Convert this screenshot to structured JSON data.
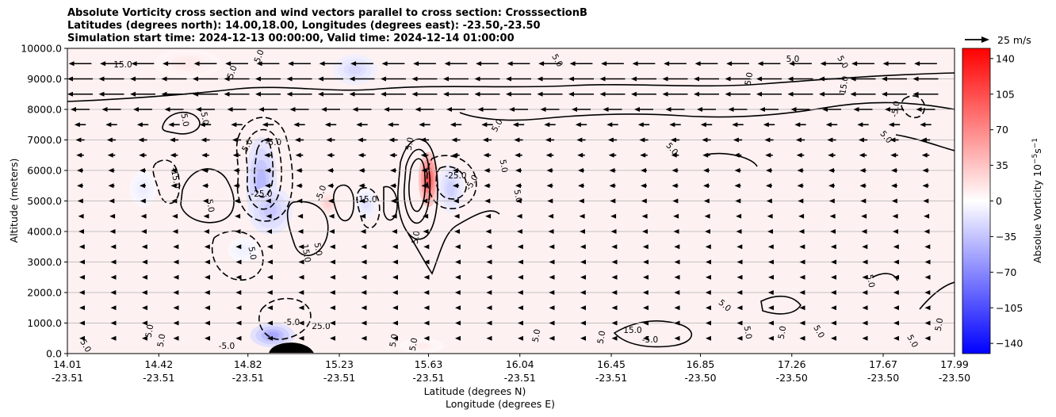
{
  "chart_data": {
    "type": "heatmap",
    "title_lines": [
      "Absolute Vorticity cross section and wind vectors parallel to cross section: CrosssectionB",
      "Latitudes (degrees north): 14.00,18.00, Longitudes (degrees east): -23.50,-23.50",
      "Simulation start time: 2024-12-13 00:00:00, Valid time: 2024-12-14 01:00:00"
    ],
    "ylabel": "Altitude (meters)",
    "xlabel_lat": "Latitude (degrees N)",
    "xlabel_lon": "Longitude (degrees E)",
    "ylim": [
      0,
      10000
    ],
    "xlim": [
      14.01,
      17.99
    ],
    "y_ticks": [
      {
        "value": 0,
        "label": "0.0"
      },
      {
        "value": 1000,
        "label": "1000.0"
      },
      {
        "value": 2000,
        "label": "2000.0"
      },
      {
        "value": 3000,
        "label": "3000.0"
      },
      {
        "value": 4000,
        "label": "4000.0"
      },
      {
        "value": 5000,
        "label": "5000.0"
      },
      {
        "value": 6000,
        "label": "6000.0"
      },
      {
        "value": 7000,
        "label": "7000.0"
      },
      {
        "value": 8000,
        "label": "8000.0"
      },
      {
        "value": 9000,
        "label": "9000.0"
      },
      {
        "value": 10000,
        "label": "10000.0"
      }
    ],
    "x_ticks": [
      {
        "value": 14.01,
        "lat": "14.01",
        "lon": "-23.51"
      },
      {
        "value": 14.42,
        "lat": "14.42",
        "lon": "-23.51"
      },
      {
        "value": 14.82,
        "lat": "14.82",
        "lon": "-23.51"
      },
      {
        "value": 15.23,
        "lat": "15.23",
        "lon": "-23.51"
      },
      {
        "value": 15.63,
        "lat": "15.63",
        "lon": "-23.51"
      },
      {
        "value": 16.04,
        "lat": "16.04",
        "lon": "-23.51"
      },
      {
        "value": 16.45,
        "lat": "16.45",
        "lon": "-23.51"
      },
      {
        "value": 16.85,
        "lat": "16.85",
        "lon": "-23.50"
      },
      {
        "value": 17.26,
        "lat": "17.26",
        "lon": "-23.50"
      },
      {
        "value": 17.67,
        "lat": "17.67",
        "lon": "-23.50"
      },
      {
        "value": 17.99,
        "lat": "17.99",
        "lon": "-23.50"
      }
    ],
    "grid": "horizontal",
    "colorbar": {
      "label_main": "Absolue Vorticity 10",
      "label_sup1": "−5",
      "label_mid": "s",
      "label_sup2": "−1",
      "range": [
        -150,
        150
      ],
      "colormap": "bwr",
      "ticks": [
        {
          "value": 140,
          "label": "140"
        },
        {
          "value": 105,
          "label": "105"
        },
        {
          "value": 70,
          "label": "70"
        },
        {
          "value": 35,
          "label": "35"
        },
        {
          "value": 0,
          "label": "0"
        },
        {
          "value": -35,
          "label": "−35"
        },
        {
          "value": -70,
          "label": "−70"
        },
        {
          "value": -105,
          "label": "−105"
        },
        {
          "value": -140,
          "label": "−140"
        }
      ]
    },
    "quiver_key": {
      "label": "25 m/s",
      "value": 25
    },
    "contour_labels": [
      "5.0",
      "15.0",
      "-5.0",
      "-15.0",
      "-25.0",
      "25.0"
    ],
    "wind_rows": [
      {
        "altitude": 9500,
        "speed": 18
      },
      {
        "altitude": 9000,
        "speed": 20
      },
      {
        "altitude": 8500,
        "speed": 20
      },
      {
        "altitude": 8000,
        "speed": 15
      },
      {
        "altitude": 7500,
        "speed": 9
      },
      {
        "altitude": 7000,
        "speed": 7
      },
      {
        "altitude": 6500,
        "speed": 6
      },
      {
        "altitude": 6000,
        "speed": 5
      },
      {
        "altitude": 5500,
        "speed": 5
      },
      {
        "altitude": 5000,
        "speed": 4
      },
      {
        "altitude": 4500,
        "speed": 3
      },
      {
        "altitude": 4000,
        "speed": 2.5
      },
      {
        "altitude": 3500,
        "speed": 1.5
      },
      {
        "altitude": 3000,
        "speed": 1
      },
      {
        "altitude": 2500,
        "speed": 0.5
      },
      {
        "altitude": 2000,
        "speed": 1.5
      },
      {
        "altitude": 1500,
        "speed": 1
      },
      {
        "altitude": 1000,
        "speed": 1
      },
      {
        "altitude": 500,
        "speed": 1
      }
    ],
    "vorticity_features": [
      {
        "x": 14.88,
        "y": 5600,
        "rx": 0.07,
        "ry": 1500,
        "value": -45
      },
      {
        "x": 14.92,
        "y": 4700,
        "rx": 0.1,
        "ry": 800,
        "value": -35
      },
      {
        "x": 14.93,
        "y": 600,
        "rx": 0.1,
        "ry": 400,
        "value": -55
      },
      {
        "x": 15.63,
        "y": 5700,
        "rx": 0.045,
        "ry": 900,
        "value": 110
      },
      {
        "x": 15.73,
        "y": 5400,
        "rx": 0.06,
        "ry": 800,
        "value": -30
      },
      {
        "x": 15.3,
        "y": 9300,
        "rx": 0.1,
        "ry": 500,
        "value": -25
      },
      {
        "x": 15.18,
        "y": 4900,
        "rx": 0.05,
        "ry": 400,
        "value": 30
      },
      {
        "x": 15.35,
        "y": 4900,
        "rx": 0.05,
        "ry": 500,
        "value": -20
      },
      {
        "x": 14.55,
        "y": 9500,
        "rx": 0.15,
        "ry": 500,
        "value": 15
      },
      {
        "x": 14.35,
        "y": 5400,
        "rx": 0.06,
        "ry": 600,
        "value": -12
      },
      {
        "x": 14.8,
        "y": 3400,
        "rx": 0.07,
        "ry": 400,
        "value": -10
      },
      {
        "x": 15.6,
        "y": 250,
        "rx": 0.1,
        "ry": 250,
        "value": 12
      }
    ]
  }
}
